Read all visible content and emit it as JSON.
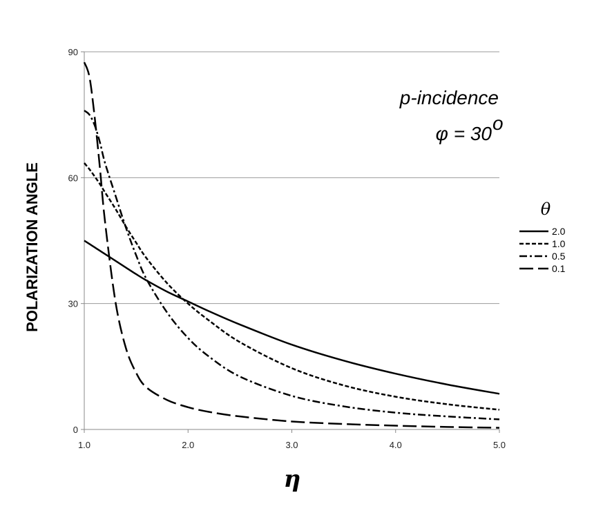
{
  "chart_data": {
    "type": "line",
    "title": "",
    "xlabel": "η",
    "ylabel": "POLARIZATION ANGLE",
    "xlim": [
      1.0,
      5.0
    ],
    "ylim": [
      0,
      90
    ],
    "xticks": [
      "1.0",
      "2.0",
      "3.0",
      "4.0",
      "5.0"
    ],
    "yticks": [
      "0",
      "30",
      "60",
      "90"
    ],
    "grid": "horizontal",
    "legend_position": "right",
    "legend_title": "θ",
    "annotation": {
      "line1": "p-incidence",
      "line2_prefix": "φ = 30",
      "line2_sup": "o"
    },
    "x": [
      1.0,
      1.05,
      1.1,
      1.15,
      1.2,
      1.3,
      1.4,
      1.5,
      1.6,
      1.8,
      2.0,
      2.2,
      2.5,
      3.0,
      3.5,
      4.0,
      4.5,
      5.0
    ],
    "series": [
      {
        "name": "2.0",
        "dash": "solid",
        "values": [
          45.0,
          44.2,
          43.4,
          42.6,
          41.8,
          40.2,
          38.6,
          37.0,
          35.5,
          32.8,
          30.5,
          28.2,
          25.0,
          20.2,
          16.4,
          13.3,
          10.7,
          8.5
        ]
      },
      {
        "name": "1.0",
        "dash": "short-dash",
        "values": [
          63.5,
          62.0,
          60.3,
          58.5,
          56.5,
          52.6,
          48.4,
          44.5,
          40.8,
          34.8,
          30.0,
          26.0,
          20.8,
          14.6,
          10.5,
          7.8,
          6.0,
          4.7
        ]
      },
      {
        "name": "0.5",
        "dash": "dash-dot",
        "values": [
          76.0,
          75.0,
          72.5,
          68.5,
          63.5,
          55.8,
          48.2,
          41.5,
          35.8,
          27.8,
          21.8,
          17.4,
          12.6,
          8.0,
          5.5,
          4.0,
          3.1,
          2.4
        ]
      },
      {
        "name": "0.1",
        "dash": "long-dash",
        "values": [
          87.5,
          84.0,
          74.5,
          62.5,
          49.5,
          30.5,
          19.5,
          13.5,
          10.0,
          7.0,
          5.3,
          4.2,
          3.1,
          1.9,
          1.3,
          0.9,
          0.6,
          0.4
        ]
      }
    ]
  }
}
